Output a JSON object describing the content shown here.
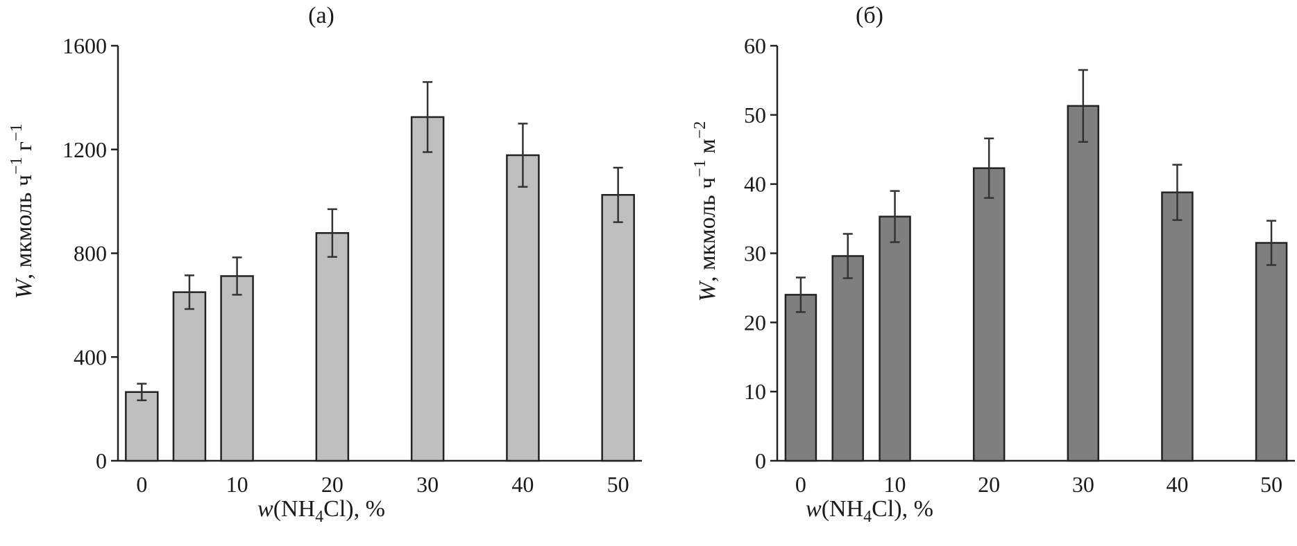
{
  "chart_data": [
    {
      "type": "bar",
      "title": "(a)",
      "xlabel_italic": "w",
      "xlabel_pre": "(NH",
      "xlabel_sub": "4",
      "xlabel_post": "Cl), %",
      "ylabel_italic": "W",
      "ylabel_main": ", мкмоль ч",
      "ylabel_sup1": "−1",
      "ylabel_unit2": " г",
      "ylabel_sup2": "−1",
      "x": [
        0,
        5,
        10,
        20,
        30,
        40,
        50
      ],
      "values": [
        265,
        650,
        712,
        878,
        1325,
        1178,
        1025
      ],
      "errors": [
        32,
        65,
        72,
        92,
        135,
        122,
        105
      ],
      "xlim": [
        -2.5,
        52.5
      ],
      "ylim": [
        0,
        1600
      ],
      "yticks": [
        0,
        400,
        800,
        1200,
        1600
      ],
      "xticks": [
        0,
        10,
        20,
        30,
        40,
        50
      ],
      "bar_color": "#bfbfbf"
    },
    {
      "type": "bar",
      "title": "(б)",
      "xlabel_italic": "w",
      "xlabel_pre": "(NH",
      "xlabel_sub": "4",
      "xlabel_post": "Cl), %",
      "ylabel_italic": "W",
      "ylabel_main": ", мкмоль ч",
      "ylabel_sup1": "−1",
      "ylabel_unit2": " м",
      "ylabel_sup2": "−2",
      "x": [
        0,
        5,
        10,
        20,
        30,
        40,
        50
      ],
      "values": [
        24.0,
        29.6,
        35.3,
        42.3,
        51.3,
        38.8,
        31.5
      ],
      "errors": [
        2.5,
        3.2,
        3.7,
        4.3,
        5.2,
        4.0,
        3.2
      ],
      "xlim": [
        -2.5,
        52.5
      ],
      "ylim": [
        0,
        60
      ],
      "yticks": [
        0,
        10,
        20,
        30,
        40,
        50,
        60
      ],
      "xticks": [
        0,
        10,
        20,
        30,
        40,
        50
      ],
      "bar_color": "#7f7f7f"
    }
  ]
}
